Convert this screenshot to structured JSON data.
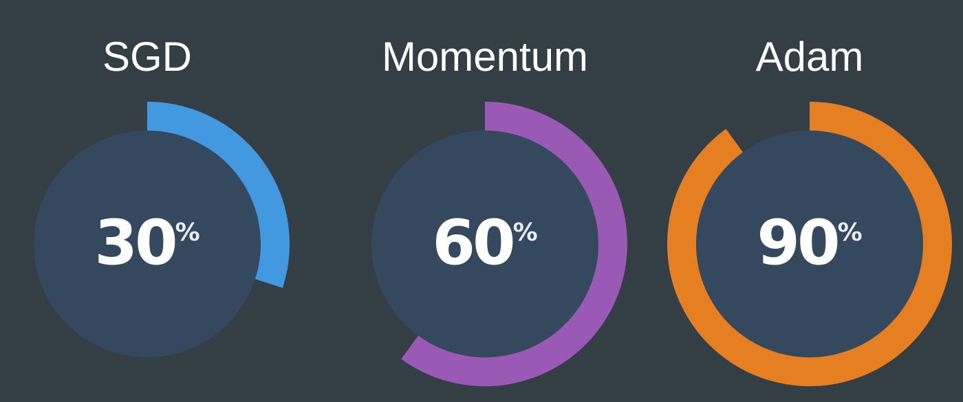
{
  "chart_data": {
    "type": "gauge",
    "track_color": "#34495e",
    "background_color": "#343f45",
    "unit": "%",
    "max": 100,
    "gauges": [
      {
        "name": "SGD",
        "value": 30,
        "color": "#4399df"
      },
      {
        "name": "Momentum",
        "value": 60,
        "color": "#9b59b6"
      },
      {
        "name": "Adam",
        "value": 90,
        "color": "#e67e22"
      }
    ]
  }
}
